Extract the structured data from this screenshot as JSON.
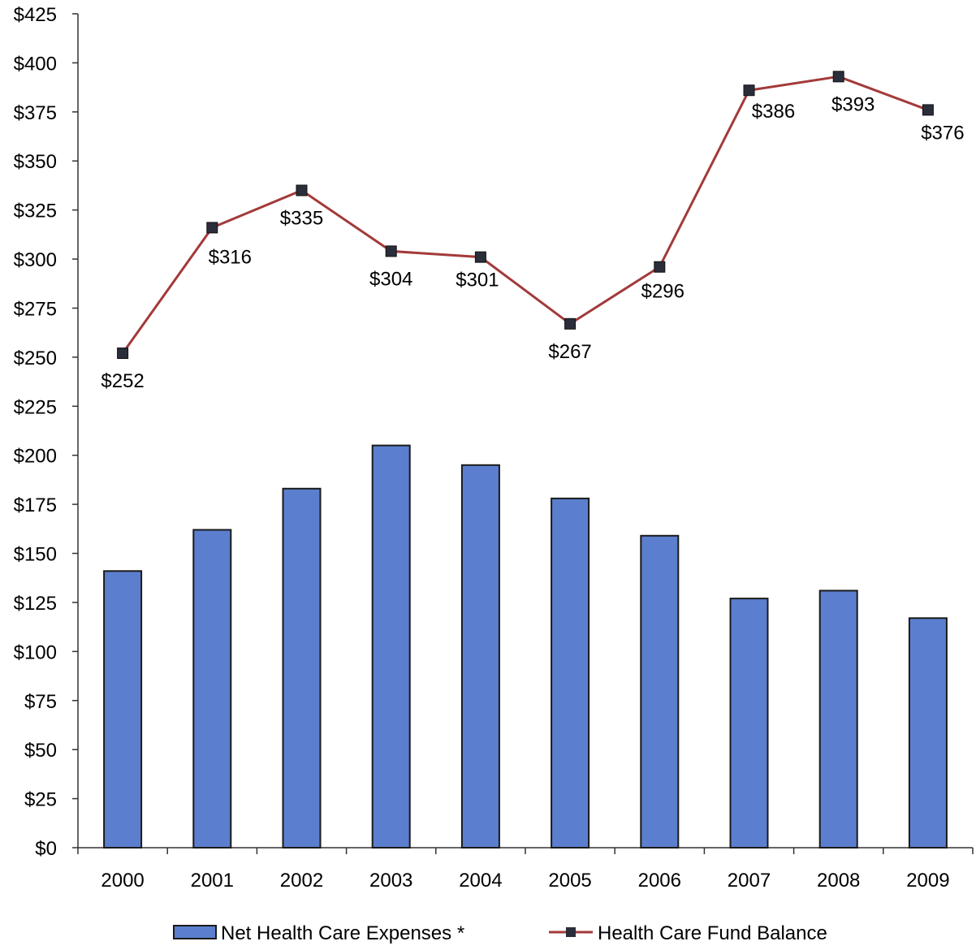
{
  "chart_data": {
    "type": "bar",
    "categories": [
      "2000",
      "2001",
      "2002",
      "2003",
      "2004",
      "2005",
      "2006",
      "2007",
      "2008",
      "2009"
    ],
    "series": [
      {
        "name": "Net Health Care Expenses *",
        "type": "bar",
        "values": [
          141,
          162,
          183,
          205,
          195,
          178,
          159,
          127,
          131,
          117
        ]
      },
      {
        "name": "Health Care Fund Balance",
        "type": "line",
        "values": [
          252,
          316,
          335,
          304,
          301,
          267,
          296,
          386,
          393,
          376
        ],
        "data_labels": [
          "$252",
          "$316",
          "$335",
          "$304",
          "$301",
          "$267",
          "$296",
          "$386",
          "$393",
          "$376"
        ]
      }
    ],
    "y_ticks": [
      "$0",
      "$25",
      "$50",
      "$75",
      "$100",
      "$125",
      "$150",
      "$175",
      "$200",
      "$225",
      "$250",
      "$275",
      "$300",
      "$325",
      "$350",
      "$375",
      "$400",
      "$425"
    ],
    "ylim": [
      0,
      425
    ],
    "grid": false,
    "legend_position": "bottom",
    "colors": {
      "bar_fill": "#5b7fce",
      "bar_stroke": "#1a1a1a",
      "line": "#a33a3a",
      "marker": "#2a2e3a",
      "axis": "#333333"
    }
  }
}
